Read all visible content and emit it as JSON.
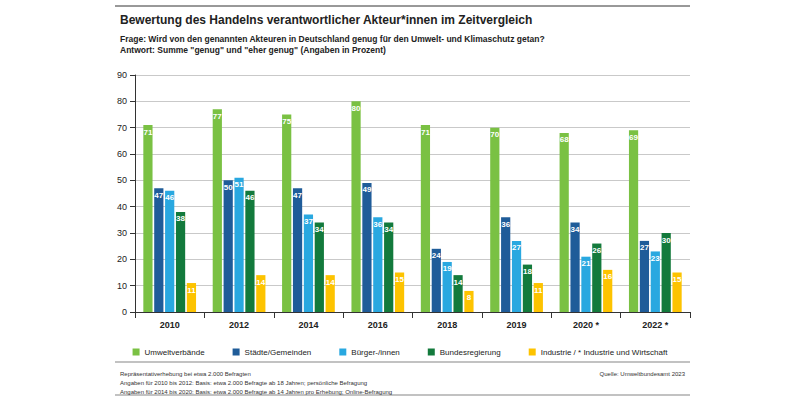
{
  "chart_data": {
    "type": "bar",
    "title": "Bewertung des Handelns verantwortlicher Akteur*innen im Zeitvergleich",
    "subtitle": [
      "Frage: Wird von den genannten Akteuren in Deutschland genug für den Umwelt- und Klimaschutz getan?",
      "Antwort: Summe \"genug\" und \"eher genug\" (Angaben in Prozent)"
    ],
    "notes": [
      "Repräsentativerhebung bei etwa 2.000 Befragten",
      "Angaben für 2010 bis 2012: Basis: etwa 2.000 Befragte ab 18 Jahren; persönliche Befragung",
      "Angaben für 2014 bis 2020: Basis: etwa 2.000 Befragte ab 14 Jahren pro Erhebung; Online-Befragung"
    ],
    "source": "Quelle: Umweltbundesamt 2023",
    "categories": [
      "2010",
      "2012",
      "2014",
      "2016",
      "2018",
      "2019",
      "2020 *",
      "2022 *"
    ],
    "series": [
      {
        "name": "Umweltverbände",
        "color": "#7ac143",
        "values": [
          71,
          77,
          75,
          80,
          71,
          70,
          68,
          69
        ]
      },
      {
        "name": "Städte/Gemeinden",
        "color": "#1f5c99",
        "values": [
          47,
          50,
          47,
          49,
          24,
          36,
          34,
          27
        ]
      },
      {
        "name": "Bürger-/innen",
        "color": "#29a8e0",
        "values": [
          46,
          51,
          37,
          36,
          19,
          27,
          21,
          23
        ]
      },
      {
        "name": "Bundesregierung",
        "color": "#137a3c",
        "values": [
          38,
          46,
          34,
          34,
          14,
          18,
          26,
          30
        ]
      },
      {
        "name": "Industrie / * Industrie und Wirtschaft",
        "color": "#fdc300",
        "values": [
          11,
          14,
          14,
          15,
          8,
          11,
          16,
          15
        ]
      }
    ],
    "ylim": [
      0,
      90
    ],
    "yticks": [
      0,
      10,
      20,
      30,
      40,
      50,
      60,
      70,
      80,
      90
    ],
    "grid": true,
    "legend": "bottom",
    "data_labels": true
  }
}
